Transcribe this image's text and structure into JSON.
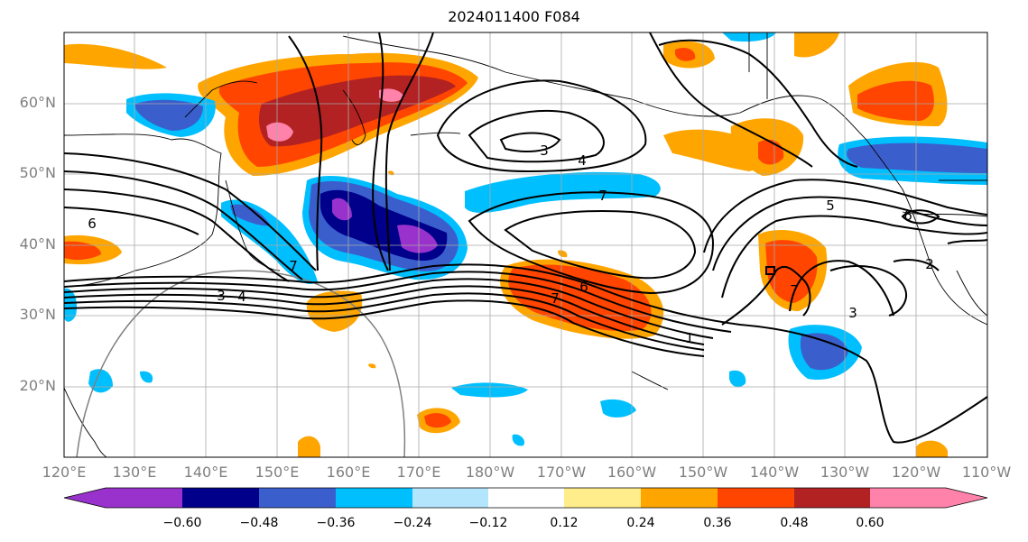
{
  "title": "2024011400 F084",
  "lat_labels": [
    "60°N",
    "50°N",
    "40°N",
    "30°N",
    "20°N"
  ],
  "lon_labels": [
    "120°E",
    "130°E",
    "140°E",
    "150°E",
    "160°E",
    "170°E",
    "180°W",
    "170°W",
    "160°W",
    "150°W",
    "140°W",
    "130°W",
    "120°W",
    "110°W"
  ],
  "contour_labels": [
    "3",
    "4",
    "7",
    "5",
    "6",
    "2",
    "6",
    "1",
    "3",
    "4",
    "3",
    "7",
    "6",
    "7",
    "7"
  ],
  "colorbar": {
    "colors": [
      "#9932cc",
      "#00008b",
      "#3a5fcd",
      "#00bfff",
      "#b3e5fc",
      "#ffffff",
      "#ffec8b",
      "#ffa500",
      "#ff4500",
      "#b22222",
      "#ff82ab"
    ],
    "ticks": [
      "−0.60",
      "−0.48",
      "−0.36",
      "−0.24",
      "−0.12",
      "0.12",
      "0.24",
      "0.36",
      "0.48",
      "0.60"
    ]
  }
}
